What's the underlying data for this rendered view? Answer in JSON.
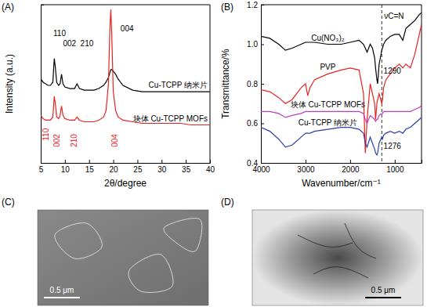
{
  "chart_data": [
    {
      "type": "line",
      "title": "(A)",
      "x_label": "2θ/degree",
      "y_label": "Intensity (a.u.)",
      "xlim": [
        5,
        40
      ],
      "xticks": [
        5,
        10,
        15,
        20,
        25,
        30,
        35,
        40
      ],
      "ylim": [
        0,
        100
      ],
      "tick_labels": "x",
      "x": [
        5,
        5.5,
        6,
        6.5,
        7,
        7.5,
        7.8,
        8,
        8.3,
        8.7,
        9,
        9.3,
        9.6,
        10,
        11,
        12,
        12.5,
        13,
        14,
        15,
        16,
        17,
        18,
        18.5,
        19,
        19.3,
        19.5,
        19.7,
        20,
        20.5,
        21,
        22,
        24,
        26,
        28,
        30,
        32,
        34,
        36,
        38,
        40
      ],
      "series": [
        {
          "name": "Cu-TCPP 纳米片",
          "color": "#000000",
          "values": [
            53,
            51,
            50,
            49,
            49,
            51,
            66,
            61,
            51,
            49,
            50,
            56,
            50,
            48,
            47,
            47,
            50,
            47,
            46,
            46,
            46,
            47,
            49,
            51,
            54,
            57,
            59,
            59,
            58,
            56,
            53,
            49,
            46,
            45,
            45,
            45,
            45,
            45,
            45,
            45,
            45
          ]
        },
        {
          "name": "块体 Cu-TCPP MOFs",
          "color": "#e8231f",
          "values": [
            30,
            28,
            27,
            27,
            27,
            29,
            42,
            38,
            29,
            28,
            30,
            36,
            30,
            28,
            27,
            27,
            29,
            27,
            26,
            26,
            26,
            27,
            29,
            33,
            50,
            85,
            97,
            80,
            45,
            33,
            29,
            27,
            26,
            25,
            25,
            25,
            25,
            25,
            24,
            24,
            24
          ]
        }
      ],
      "annotations": [
        {
          "text": "110",
          "x": 7.6,
          "y": 80,
          "color": "#000000"
        },
        {
          "text": "002",
          "x": 9.6,
          "y": 74,
          "color": "#000000"
        },
        {
          "text": "210",
          "x": 13.2,
          "y": 74,
          "color": "#000000"
        },
        {
          "text": "004",
          "x": 21.5,
          "y": 83,
          "color": "#000000"
        },
        {
          "text": "110",
          "x": 6.6,
          "y": 14,
          "color": "#e8231f"
        },
        {
          "text": "002",
          "x": 8.9,
          "y": 10,
          "color": "#e8231f"
        },
        {
          "text": "210",
          "x": 12.4,
          "y": 10,
          "color": "#e8231f"
        },
        {
          "text": "004",
          "x": 20.8,
          "y": 10,
          "color": "#e8231f"
        }
      ]
    },
    {
      "type": "line",
      "title": "(B)",
      "x_label": "Wavenumber/cm⁻¹",
      "y_label": "Transmittance/%",
      "xlim": [
        4000,
        400
      ],
      "xticks": [
        4000,
        3000,
        2000,
        1000
      ],
      "ylim": [
        0.4,
        1.2
      ],
      "yticks": [
        0.4,
        0.6,
        0.8,
        {
          "value": 1,
          "label": "1.0"
        },
        1.2
      ],
      "x": [
        4000,
        3800,
        3600,
        3450,
        3300,
        3100,
        3000,
        2950,
        2900,
        2800,
        2500,
        2200,
        2000,
        1800,
        1700,
        1660,
        1620,
        1550,
        1500,
        1450,
        1430,
        1400,
        1384,
        1350,
        1290,
        1276,
        1250,
        1200,
        1100,
        1000,
        900,
        820,
        750,
        650,
        550,
        450,
        400
      ],
      "series": [
        {
          "name": "Cu(NO₃)₂",
          "color": "#000000",
          "values": [
            1.04,
            1.03,
            1.0,
            0.97,
            0.98,
            1.0,
            1.01,
            1.01,
            1.01,
            1.01,
            1.0,
            1.0,
            1.01,
            1.02,
            1.0,
            0.98,
            0.96,
            1.0,
            0.98,
            0.93,
            0.88,
            0.82,
            0.8,
            0.9,
            0.97,
            0.98,
            1.0,
            1.02,
            1.04,
            1.05,
            1.05,
            1.02,
            1.08,
            1.1,
            1.12,
            1.15,
            1.16
          ]
        },
        {
          "name": "PVP",
          "color": "#e8231f",
          "values": [
            0.77,
            0.76,
            0.73,
            0.7,
            0.72,
            0.78,
            0.8,
            0.74,
            0.78,
            0.82,
            0.85,
            0.87,
            0.88,
            0.87,
            0.75,
            0.45,
            0.62,
            0.8,
            0.75,
            0.7,
            0.62,
            0.7,
            0.72,
            0.75,
            0.7,
            0.72,
            0.78,
            0.82,
            0.85,
            0.88,
            0.9,
            0.88,
            0.9,
            0.88,
            0.95,
            1.05,
            1.1
          ]
        },
        {
          "name": "块体 Cu-TCPP MOFs",
          "color": "#c03cc0",
          "values": [
            0.66,
            0.66,
            0.65,
            0.63,
            0.64,
            0.65,
            0.66,
            0.66,
            0.66,
            0.66,
            0.66,
            0.66,
            0.66,
            0.66,
            0.65,
            0.62,
            0.6,
            0.64,
            0.63,
            0.62,
            0.61,
            0.62,
            0.62,
            0.64,
            0.65,
            0.65,
            0.66,
            0.66,
            0.66,
            0.66,
            0.66,
            0.66,
            0.66,
            0.66,
            0.67,
            0.68,
            0.69
          ]
        },
        {
          "name": "Cu-TCPP 纳米片",
          "color": "#2b3fa8",
          "values": [
            0.58,
            0.56,
            0.52,
            0.48,
            0.49,
            0.53,
            0.55,
            0.55,
            0.55,
            0.56,
            0.57,
            0.58,
            0.58,
            0.57,
            0.55,
            0.5,
            0.48,
            0.53,
            0.5,
            0.47,
            0.45,
            0.44,
            0.45,
            0.5,
            0.53,
            0.52,
            0.54,
            0.55,
            0.56,
            0.55,
            0.56,
            0.55,
            0.57,
            0.58,
            0.6,
            0.62,
            0.63
          ]
        }
      ],
      "annotations": [
        {
          "text": "νC=N",
          "x": 1240,
          "y": 1.13,
          "color": "#000000"
        },
        {
          "text": "1290",
          "x": 1250,
          "y": 0.85,
          "color": "#000000"
        },
        {
          "text": "1276",
          "x": 1250,
          "y": 0.47,
          "color": "#000000"
        }
      ],
      "vlines": [
        {
          "x": 1290,
          "line_style": "dashed"
        }
      ]
    }
  ],
  "images": [
    {
      "label": "(C)",
      "scale_bar": "0.5 μm"
    },
    {
      "label": "(D)",
      "scale_bar": "0.5 μm"
    }
  ]
}
